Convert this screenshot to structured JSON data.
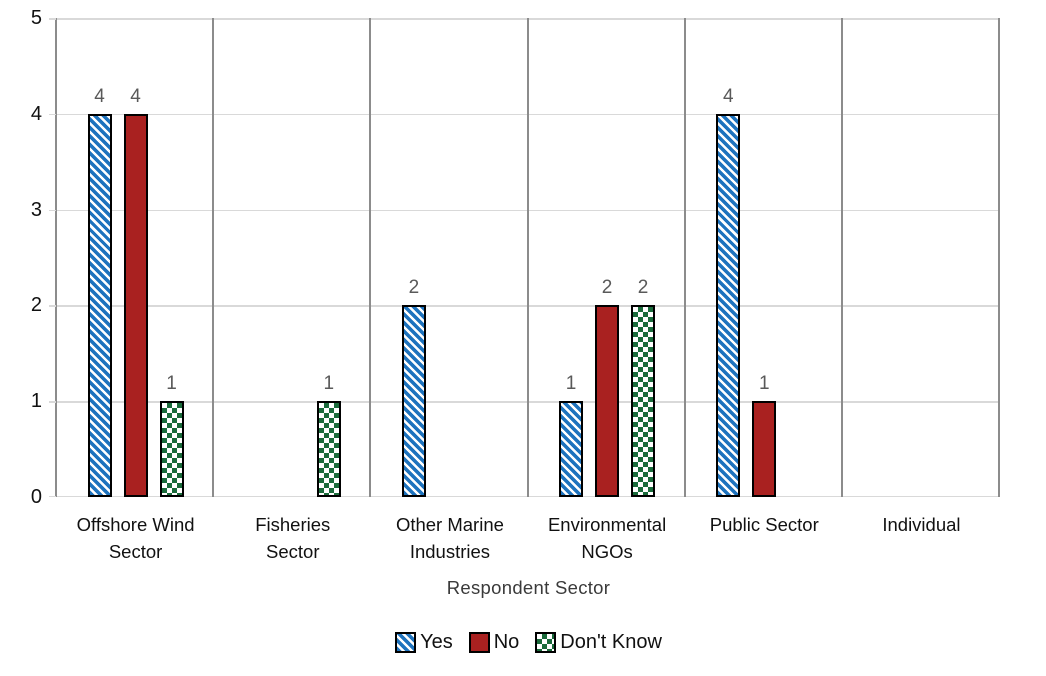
{
  "chart_data": {
    "type": "bar",
    "title": "",
    "xlabel": "Respondent Sector",
    "ylabel": "",
    "ylim": [
      0,
      5
    ],
    "yticks": [
      0,
      1,
      2,
      3,
      4,
      5
    ],
    "grid": true,
    "legend_position": "bottom",
    "data_labels": true,
    "categories": [
      "Offshore Wind Sector",
      "Fisheries Sector",
      "Other Marine Industries",
      "Environmental NGOs",
      "Public Sector",
      "Individual"
    ],
    "series": [
      {
        "name": "Yes",
        "pattern": "diagonal-stripes",
        "color": "#1E73BE",
        "values": [
          4,
          0,
          2,
          1,
          4,
          0
        ]
      },
      {
        "name": "No",
        "pattern": "solid",
        "color": "#A92120",
        "values": [
          4,
          0,
          0,
          2,
          1,
          0
        ]
      },
      {
        "name": "Don't Know",
        "pattern": "checkerboard",
        "color": "#1A6B3B",
        "values": [
          1,
          1,
          0,
          2,
          0,
          0
        ]
      }
    ],
    "colors": {
      "data_label": "#595959",
      "axis_line": "#8c8c8c",
      "gridline": "#d9d9d9",
      "bar_border": "#000000",
      "background": "#ffffff"
    }
  }
}
